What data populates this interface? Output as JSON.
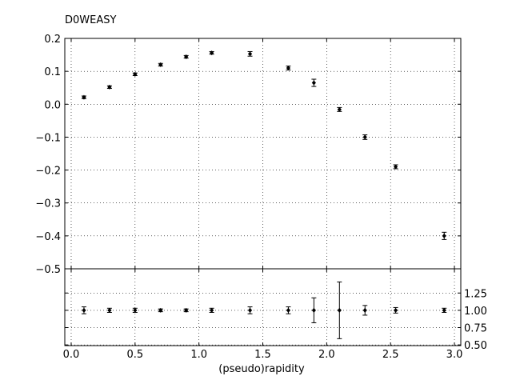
{
  "chart_data": {
    "type": "scatter",
    "title": "D0WEASY",
    "xlabel": "(pseudo)rapidity",
    "xlim": [
      -0.05,
      3.05
    ],
    "xticks": [
      "0.0",
      "0.5",
      "1.0",
      "1.5",
      "2.0",
      "2.5",
      "3.0"
    ],
    "xtick_values": [
      0.0,
      0.5,
      1.0,
      1.5,
      2.0,
      2.5,
      3.0
    ],
    "main": {
      "ylim": [
        -0.5,
        0.2
      ],
      "yticks": [
        "0.2",
        "0.1",
        "0.0",
        "−0.1",
        "−0.2",
        "−0.3",
        "−0.4",
        "−0.5"
      ],
      "ytick_values": [
        0.2,
        0.1,
        0.0,
        -0.1,
        -0.2,
        -0.3,
        -0.4,
        -0.5
      ],
      "grid": true,
      "points": [
        {
          "x": 0.1,
          "y": 0.021,
          "err": 0.004
        },
        {
          "x": 0.3,
          "y": 0.052,
          "err": 0.004
        },
        {
          "x": 0.5,
          "y": 0.091,
          "err": 0.004
        },
        {
          "x": 0.7,
          "y": 0.12,
          "err": 0.004
        },
        {
          "x": 0.9,
          "y": 0.144,
          "err": 0.004
        },
        {
          "x": 1.1,
          "y": 0.156,
          "err": 0.004
        },
        {
          "x": 1.4,
          "y": 0.153,
          "err": 0.007
        },
        {
          "x": 1.7,
          "y": 0.11,
          "err": 0.006
        },
        {
          "x": 1.9,
          "y": 0.065,
          "err": 0.011
        },
        {
          "x": 2.1,
          "y": -0.016,
          "err": 0.006
        },
        {
          "x": 2.3,
          "y": -0.1,
          "err": 0.007
        },
        {
          "x": 2.54,
          "y": -0.19,
          "err": 0.006
        },
        {
          "x": 2.92,
          "y": -0.4,
          "err": 0.011
        }
      ]
    },
    "ratio": {
      "ylim": [
        0.49,
        1.6
      ],
      "yticks": [
        "1.25",
        "1.00",
        "0.75",
        "0.50"
      ],
      "ytick_values": [
        1.25,
        1.0,
        0.75,
        0.5
      ],
      "grid": true,
      "points": [
        {
          "x": 0.1,
          "y": 1.0,
          "err": 0.05
        },
        {
          "x": 0.3,
          "y": 1.0,
          "err": 0.03
        },
        {
          "x": 0.5,
          "y": 1.0,
          "err": 0.03
        },
        {
          "x": 0.7,
          "y": 1.0,
          "err": 0.02
        },
        {
          "x": 0.9,
          "y": 1.0,
          "err": 0.02
        },
        {
          "x": 1.1,
          "y": 1.0,
          "err": 0.03
        },
        {
          "x": 1.4,
          "y": 1.0,
          "err": 0.05
        },
        {
          "x": 1.7,
          "y": 1.0,
          "err": 0.05
        },
        {
          "x": 1.9,
          "y": 1.0,
          "err": 0.18
        },
        {
          "x": 2.1,
          "y": 1.0,
          "err": 0.41
        },
        {
          "x": 2.3,
          "y": 1.0,
          "err": 0.07
        },
        {
          "x": 2.54,
          "y": 1.0,
          "err": 0.04
        },
        {
          "x": 2.92,
          "y": 1.0,
          "err": 0.03
        }
      ]
    },
    "colors": {
      "marker": "#000000",
      "grid": "#000000"
    }
  }
}
